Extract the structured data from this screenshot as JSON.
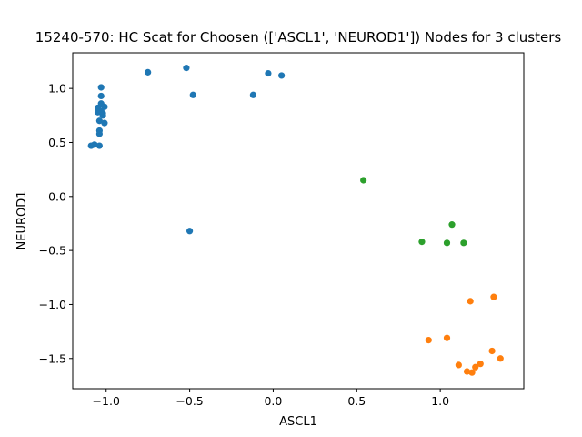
{
  "chart_data": {
    "type": "scatter",
    "title": "15240-570: HC Scat for Choosen (['ASCL1', 'NEUROD1']) Nodes for 3 clusters",
    "xlabel": "ASCL1",
    "ylabel": "NEUROD1",
    "xlim": [
      -1.2,
      1.5
    ],
    "ylim": [
      -1.78,
      1.33
    ],
    "xticks": [
      -1.0,
      -0.5,
      0.0,
      0.5,
      1.0
    ],
    "xtick_labels": [
      "−1.0",
      "−0.5",
      "0.0",
      "0.5",
      "1.0"
    ],
    "yticks": [
      -1.5,
      -1.0,
      -0.5,
      0.0,
      0.5,
      1.0
    ],
    "ytick_labels": [
      "−1.5",
      "−1.0",
      "−0.5",
      "0.0",
      "0.5",
      "1.0"
    ],
    "grid": false,
    "legend": false,
    "series": [
      {
        "color": "#1f77b4",
        "points": [
          [
            -0.75,
            1.15
          ],
          [
            -0.52,
            1.19
          ],
          [
            -0.03,
            1.14
          ],
          [
            0.05,
            1.12
          ],
          [
            -0.48,
            0.94
          ],
          [
            -0.12,
            0.94
          ],
          [
            -1.03,
            1.01
          ],
          [
            -1.03,
            0.93
          ],
          [
            -1.03,
            0.86
          ],
          [
            -1.05,
            0.82
          ],
          [
            -1.01,
            0.83
          ],
          [
            -1.05,
            0.78
          ],
          [
            -1.02,
            0.77
          ],
          [
            -1.02,
            0.75
          ],
          [
            -1.03,
            0.79
          ],
          [
            -1.04,
            0.7
          ],
          [
            -1.01,
            0.68
          ],
          [
            -1.04,
            0.61
          ],
          [
            -1.04,
            0.58
          ],
          [
            -1.07,
            0.48
          ],
          [
            -1.09,
            0.47
          ],
          [
            -1.04,
            0.47
          ],
          [
            -0.5,
            -0.32
          ]
        ]
      },
      {
        "color": "#ff7f0e",
        "points": [
          [
            1.18,
            -0.97
          ],
          [
            1.32,
            -0.93
          ],
          [
            0.93,
            -1.33
          ],
          [
            1.04,
            -1.31
          ],
          [
            1.31,
            -1.43
          ],
          [
            1.36,
            -1.5
          ],
          [
            1.11,
            -1.56
          ],
          [
            1.24,
            -1.55
          ],
          [
            1.21,
            -1.58
          ],
          [
            1.16,
            -1.62
          ],
          [
            1.19,
            -1.63
          ]
        ]
      },
      {
        "color": "#2ca02c",
        "points": [
          [
            0.54,
            0.15
          ],
          [
            1.07,
            -0.26
          ],
          [
            0.89,
            -0.42
          ],
          [
            1.04,
            -0.43
          ],
          [
            1.14,
            -0.43
          ]
        ]
      }
    ]
  }
}
